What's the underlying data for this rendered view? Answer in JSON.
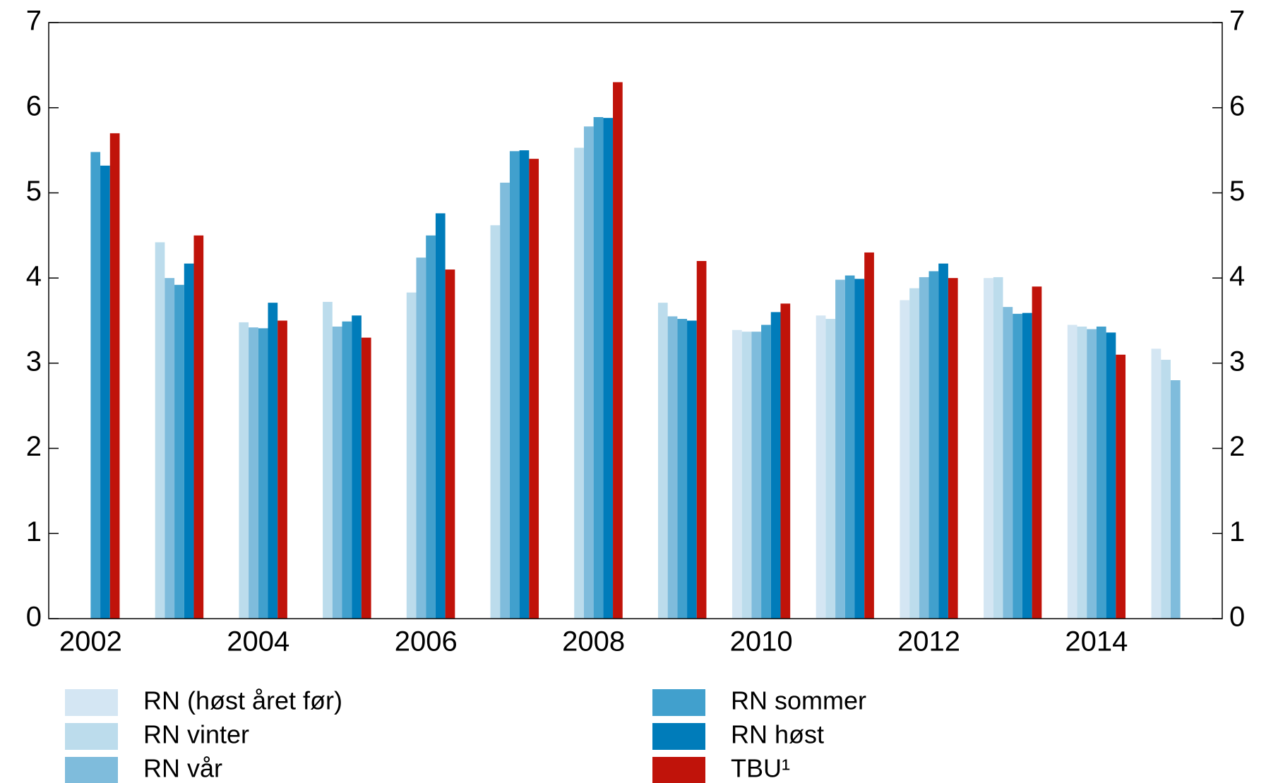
{
  "chart_data": {
    "type": "bar",
    "categories": [
      "2002",
      null,
      "2004",
      null,
      "2006",
      null,
      "2008",
      null,
      "2010",
      null,
      "2012",
      null,
      "2014",
      null
    ],
    "series": [
      {
        "name": "RN (høst året før)",
        "color": "#d4e6f3",
        "values": [
          null,
          null,
          null,
          null,
          null,
          null,
          null,
          null,
          3.39,
          3.56,
          3.74,
          4.0,
          3.45,
          3.17
        ]
      },
      {
        "name": "RN vinter",
        "color": "#bcdcec",
        "values": [
          null,
          4.42,
          3.48,
          3.72,
          3.83,
          4.62,
          5.53,
          3.71,
          3.37,
          3.52,
          3.88,
          4.01,
          3.43,
          3.04
        ]
      },
      {
        "name": "RN vår",
        "color": "#7fbcdc",
        "values": [
          null,
          4.0,
          3.42,
          3.43,
          4.24,
          5.12,
          5.78,
          3.55,
          3.37,
          3.98,
          4.01,
          3.66,
          3.4,
          2.8
        ]
      },
      {
        "name": "RN sommer",
        "color": "#41a0cd",
        "values": [
          5.48,
          3.92,
          3.41,
          3.49,
          4.5,
          5.49,
          5.89,
          3.52,
          3.45,
          4.03,
          4.08,
          3.58,
          3.43,
          null
        ]
      },
      {
        "name": "RN høst",
        "color": "#007cba",
        "values": [
          5.32,
          4.17,
          3.71,
          3.56,
          4.76,
          5.5,
          5.88,
          3.5,
          3.6,
          3.99,
          4.17,
          3.59,
          3.36,
          null
        ]
      },
      {
        "name": "TBU¹",
        "color": "#c0130a",
        "values": [
          5.7,
          4.5,
          3.5,
          3.3,
          4.1,
          5.4,
          6.3,
          4.2,
          3.7,
          4.3,
          4.0,
          3.9,
          3.1,
          null
        ]
      }
    ],
    "ylim": [
      0,
      7
    ],
    "yticks": [
      0,
      1,
      2,
      3,
      4,
      5,
      6,
      7
    ],
    "y2lim": [
      0,
      7
    ],
    "y2ticks": [
      0,
      1,
      2,
      3,
      4,
      5,
      6,
      7
    ]
  }
}
